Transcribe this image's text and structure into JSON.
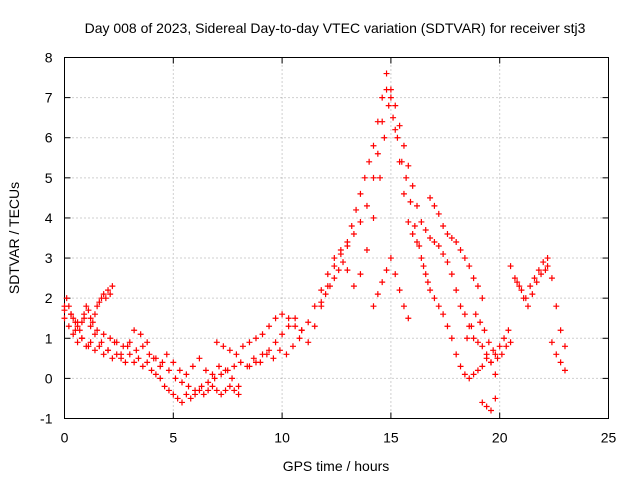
{
  "chart_data": {
    "type": "scatter",
    "title": "Day 008 of 2023, Sidereal Day-to-day VTEC variation (SDTVAR) for receiver stj3",
    "xlabel": "GPS time / hours",
    "ylabel": "SDTVAR / TECUs",
    "xlim": [
      0,
      25
    ],
    "ylim": [
      -1,
      8
    ],
    "xticks": [
      0,
      5,
      10,
      15,
      20,
      25
    ],
    "yticks": [
      -1,
      0,
      1,
      2,
      3,
      4,
      5,
      6,
      7,
      8
    ],
    "xtick_labels": [
      "0",
      "5",
      "10",
      "15",
      "20",
      "25"
    ],
    "ytick_labels": [
      "-1",
      "0",
      "1",
      "2",
      "3",
      "4",
      "5",
      "6",
      "7",
      "8"
    ],
    "grid": true,
    "marker": "+",
    "color": "#ff0000",
    "series": [
      {
        "name": "SDTVAR",
        "x": [
          0.0,
          0.1,
          0.2,
          0.3,
          0.4,
          0.5,
          0.6,
          0.7,
          0.8,
          0.9,
          1.0,
          1.1,
          1.2,
          1.3,
          1.4,
          1.5,
          1.6,
          1.7,
          1.8,
          1.9,
          2.0,
          2.1,
          2.2,
          0.0,
          0.2,
          0.4,
          0.6,
          0.8,
          1.0,
          1.2,
          1.4,
          1.6,
          1.8,
          2.0,
          2.2,
          2.4,
          2.6,
          2.8,
          3.0,
          3.2,
          3.4,
          3.6,
          3.8,
          4.0,
          4.2,
          4.4,
          4.6,
          4.8,
          5.0,
          5.2,
          5.4,
          5.6,
          5.8,
          6.0,
          6.2,
          6.4,
          6.6,
          6.8,
          7.0,
          7.2,
          7.4,
          7.6,
          7.8,
          8.0,
          0.0,
          0.3,
          0.6,
          0.9,
          1.2,
          1.5,
          1.8,
          2.1,
          2.4,
          2.7,
          3.0,
          3.3,
          3.6,
          3.9,
          4.2,
          4.5,
          4.8,
          5.1,
          5.4,
          5.7,
          6.0,
          6.3,
          6.6,
          6.9,
          7.2,
          7.5,
          7.8,
          8.1,
          8.4,
          8.7,
          9.0,
          9.3,
          9.6,
          9.9,
          10.2,
          10.5,
          10.8,
          0.5,
          0.8,
          1.1,
          1.4,
          1.7,
          2.0,
          2.3,
          2.6,
          2.9,
          3.2,
          3.5,
          3.8,
          4.1,
          4.4,
          4.7,
          5.0,
          5.3,
          5.6,
          5.9,
          6.2,
          6.5,
          6.8,
          7.1,
          7.4,
          7.7,
          8.0,
          7.0,
          7.3,
          7.6,
          7.9,
          8.2,
          8.5,
          8.8,
          9.1,
          9.4,
          9.7,
          10.0,
          10.3,
          10.6,
          10.9,
          11.2,
          11.5,
          11.8,
          12.1,
          12.4,
          12.7,
          13.0,
          13.3,
          13.6,
          13.9,
          14.2,
          14.4,
          14.6,
          14.8,
          15.0,
          15.2,
          15.4,
          15.6,
          15.8,
          16.0,
          16.2,
          16.4,
          16.6,
          16.8,
          17.0,
          17.2,
          17.4,
          17.6,
          17.8,
          18.0,
          18.2,
          18.4,
          18.6,
          18.8,
          19.0,
          19.2,
          19.4,
          19.6,
          19.8,
          20.0,
          20.2,
          20.4,
          8.5,
          8.8,
          9.1,
          9.4,
          9.7,
          10.0,
          10.3,
          10.6,
          10.9,
          11.2,
          11.5,
          11.8,
          12.1,
          12.4,
          12.7,
          13.0,
          13.3,
          13.6,
          13.9,
          14.2,
          14.5,
          14.7,
          14.9,
          15.1,
          15.3,
          15.5,
          15.7,
          15.9,
          16.1,
          16.3,
          16.5,
          16.7,
          11.8,
          12.0,
          12.2,
          12.4,
          12.6,
          12.8,
          13.0,
          13.2,
          13.4,
          13.6,
          13.8,
          14.0,
          14.2,
          14.4,
          14.6,
          14.8,
          15.0,
          15.2,
          15.4,
          15.6,
          15.8,
          16.0,
          16.2,
          16.4,
          16.6,
          16.8,
          17.0,
          17.2,
          17.4,
          17.6,
          17.8,
          18.0,
          18.2,
          18.4,
          18.6,
          18.8,
          19.0,
          19.2,
          19.4,
          19.6,
          19.8,
          14.2,
          14.4,
          14.6,
          14.8,
          15.0,
          15.2,
          15.4,
          15.6,
          15.8,
          16.8,
          17.0,
          17.2,
          17.4,
          17.6,
          17.8,
          18.0,
          18.2,
          18.4,
          18.6,
          18.8,
          19.0,
          19.2,
          18.5,
          18.7,
          18.9,
          19.1,
          19.3,
          19.5,
          19.7,
          19.9,
          20.1,
          20.3,
          20.5,
          19.2,
          19.4,
          19.6,
          19.8,
          20.5,
          20.7,
          20.9,
          21.1,
          21.3,
          21.5,
          21.7,
          21.9,
          22.1,
          20.8,
          21.0,
          21.2,
          21.4,
          21.6,
          21.8,
          22.0,
          22.2,
          22.2,
          22.4,
          22.6,
          22.8,
          23.0,
          22.4,
          22.6,
          22.8,
          23.0
        ],
        "y": [
          1.7,
          2.0,
          1.8,
          1.6,
          1.5,
          1.4,
          1.3,
          1.2,
          1.4,
          1.6,
          1.8,
          1.7,
          1.5,
          1.4,
          1.6,
          1.8,
          1.9,
          2.0,
          2.1,
          2.0,
          2.2,
          2.1,
          2.3,
          1.5,
          1.3,
          1.1,
          0.9,
          1.0,
          0.8,
          0.9,
          0.7,
          0.8,
          0.6,
          0.7,
          0.5,
          0.6,
          0.5,
          0.4,
          0.6,
          0.4,
          0.5,
          0.3,
          0.4,
          0.2,
          0.1,
          0.0,
          -0.2,
          -0.3,
          -0.4,
          -0.5,
          -0.6,
          -0.4,
          -0.5,
          -0.4,
          -0.3,
          -0.4,
          -0.3,
          -0.2,
          -0.3,
          -0.4,
          -0.3,
          -0.2,
          -0.3,
          -0.4,
          1.8,
          1.6,
          1.4,
          1.5,
          1.3,
          1.2,
          1.1,
          1.0,
          0.9,
          0.8,
          0.9,
          0.7,
          0.8,
          0.6,
          0.5,
          0.4,
          0.2,
          0.0,
          -0.1,
          -0.2,
          -0.3,
          -0.2,
          -0.1,
          0.0,
          0.1,
          0.2,
          0.3,
          0.4,
          0.3,
          0.5,
          0.4,
          0.6,
          0.5,
          0.7,
          0.6,
          0.8,
          1.0,
          1.2,
          1.0,
          0.8,
          1.1,
          0.9,
          0.7,
          0.9,
          0.6,
          0.8,
          1.2,
          1.1,
          0.9,
          0.5,
          0.3,
          0.6,
          0.4,
          0.2,
          0.1,
          0.3,
          0.5,
          0.2,
          0.1,
          0.3,
          0.2,
          0.0,
          -0.2,
          0.9,
          0.8,
          0.7,
          0.6,
          0.8,
          0.9,
          1.0,
          1.1,
          1.3,
          1.5,
          1.6,
          1.5,
          1.3,
          1.2,
          1.4,
          1.8,
          2.2,
          2.6,
          3.0,
          3.2,
          3.4,
          3.6,
          3.9,
          4.3,
          5.0,
          5.6,
          6.4,
          7.2,
          7.0,
          6.2,
          5.4,
          4.6,
          3.9,
          3.6,
          3.4,
          3.0,
          2.6,
          2.2,
          2.0,
          1.8,
          1.6,
          1.3,
          1.0,
          0.6,
          0.3,
          0.1,
          0.0,
          0.1,
          0.2,
          0.3,
          0.5,
          0.4,
          0.6,
          0.8,
          1.0,
          1.2,
          0.3,
          0.4,
          0.6,
          0.7,
          0.9,
          1.1,
          1.3,
          1.5,
          1.2,
          0.9,
          1.3,
          1.8,
          2.3,
          2.8,
          3.1,
          2.7,
          2.3,
          2.6,
          3.2,
          4.0,
          5.0,
          6.0,
          6.8,
          6.5,
          6.0,
          5.4,
          5.0,
          4.4,
          3.8,
          3.3,
          2.8,
          2.4,
          1.9,
          2.1,
          2.3,
          2.5,
          2.7,
          2.9,
          3.3,
          3.8,
          4.2,
          4.6,
          5.0,
          5.4,
          5.8,
          6.4,
          7.0,
          7.6,
          7.2,
          6.8,
          6.3,
          5.8,
          5.3,
          4.8,
          4.3,
          3.9,
          3.7,
          3.5,
          3.4,
          3.3,
          3.1,
          2.9,
          2.6,
          2.2,
          1.8,
          1.6,
          1.3,
          1.0,
          0.9,
          0.8,
          0.6,
          0.4,
          0.1,
          1.8,
          2.1,
          2.4,
          2.7,
          3.0,
          2.6,
          2.2,
          1.8,
          1.5,
          4.5,
          4.3,
          4.1,
          3.8,
          3.6,
          3.5,
          3.4,
          3.2,
          3.0,
          2.8,
          2.5,
          2.3,
          2.0,
          1.0,
          1.3,
          1.6,
          1.4,
          1.2,
          0.9,
          0.7,
          0.5,
          0.6,
          0.8,
          0.9,
          -0.6,
          -0.7,
          -0.8,
          -0.5,
          2.8,
          2.5,
          2.3,
          2.0,
          1.8,
          2.1,
          2.4,
          2.6,
          2.7,
          2.4,
          2.2,
          2.0,
          2.3,
          2.5,
          2.7,
          2.9,
          2.8,
          3.0,
          2.5,
          1.8,
          1.2,
          0.8,
          0.9,
          0.6,
          0.4,
          0.2
        ]
      }
    ]
  }
}
